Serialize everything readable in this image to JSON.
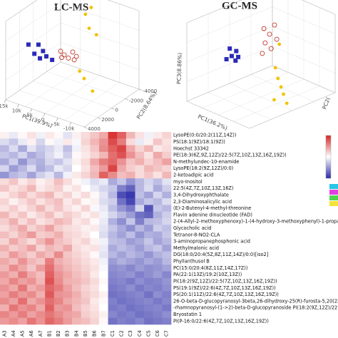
{
  "chart_data": [
    {
      "type": "scatter3d",
      "title": "LC-MS",
      "x_label": "PC1(39.9%)",
      "y_label": "PC2(8.64%)",
      "xlim": [
        15000,
        -15000
      ],
      "ylim": [
        4000,
        -4000
      ],
      "zlim": [
        -4000,
        4000
      ],
      "xticks": [
        {
          "value": 15000,
          "label": "15k"
        },
        {
          "value": 10000,
          "label": "10k"
        },
        {
          "value": 5000,
          "label": "5k"
        },
        0,
        {
          "value": -5000,
          "label": "-5k"
        },
        {
          "value": -10000,
          "label": "-10k"
        }
      ],
      "yticks": [
        4000,
        2000,
        0,
        -2000,
        -4000
      ],
      "series": [
        {
          "color": "#2b2bb8",
          "marker": "square",
          "x": [
            12600,
            9300,
            6500,
            10600,
            5500,
            8200,
            3800
          ],
          "y": [
            1600,
            1400,
            1800,
            1500,
            1700,
            1600,
            1500
          ],
          "z": [
            700,
            900,
            700,
            -100,
            200,
            -300,
            -100
          ]
        },
        {
          "color": "#c0392b",
          "marker": "open-circle",
          "x": [
            4500,
            2600,
            400,
            -1800,
            1800,
            -700,
            3700
          ],
          "y": [
            0,
            200,
            -200,
            100,
            -100,
            0,
            150
          ],
          "z": [
            0,
            -100,
            200,
            100,
            -500,
            -400,
            -500
          ]
        },
        {
          "color": "#f2c200",
          "marker": "circle",
          "x": [
            1300,
            -900,
            -100,
            -2900,
            3500,
            1800,
            -4500
          ],
          "y": [
            -2400,
            -2400,
            -2400,
            -2400,
            -2400,
            -2400,
            -1230
          ],
          "z": [
            2900,
            3800,
            1600,
            1200,
            -3100,
            -3700,
            -3840
          ]
        }
      ]
    },
    {
      "type": "scatter3d",
      "title": "GC-MS",
      "x_label": "PC1(36.2%)",
      "y_label": "PC2(",
      "z_label": "PC3(8.86%)",
      "xlim": [
        -1,
        1
      ],
      "ylim": [
        -1,
        1
      ],
      "zlim": [
        -1,
        1
      ],
      "series": [
        {
          "color": "#2b2bb8",
          "marker": "square",
          "x": [
            -0.45,
            -0.27,
            -0.36,
            -0.18,
            -0.5,
            -0.32
          ],
          "y": [
            -0.4,
            -0.38,
            -0.42,
            -0.4,
            -0.44,
            -0.36
          ],
          "z": [
            0.26,
            0.25,
            0.11,
            0.14,
            -0.01,
            -0.02
          ]
        },
        {
          "color": "#c0392b",
          "marker": "open-circle",
          "x": [
            -0.18,
            0,
            0.16,
            -0.14,
            0.05,
            -0.23,
            0.23
          ],
          "y": [
            0.2,
            0.2,
            0.2,
            0.2,
            0.2,
            0.2,
            0.2
          ],
          "z": [
            0.59,
            0.51,
            0.8,
            0.24,
            0.16,
            -0.06,
            0.46
          ]
        },
        {
          "color": "#f2c200",
          "marker": "circle",
          "x": [
            -0.22,
            0.01,
            0.16,
            0.38,
            0.54,
            0.7,
            0.46
          ],
          "y": [
            0.59,
            0.33,
            0.28,
            0.19,
            0.13,
            0.09,
            -0.03
          ],
          "z": [
            0,
            -0.4,
            -0.6,
            -0.7,
            -0.8,
            -0.96,
            -0.9
          ]
        }
      ]
    },
    {
      "type": "heatmap",
      "zlim": [
        -3,
        3
      ],
      "low_color": "#2b2ba8",
      "mid_color": "#ffffff",
      "high_color": "#d62728",
      "columns": [
        "A3",
        "A4",
        "A5",
        "A6",
        "A7",
        "B1",
        "B2",
        "B3",
        "B4",
        "B5",
        "B6",
        "B7",
        "C1",
        "C2",
        "C3",
        "C4",
        "C5",
        "C6",
        "C7"
      ],
      "rows": [
        "LysoPE(0:0/20:2(11Z,14Z))",
        "PS(18:1(9Z)/18:1(9Z))",
        "Hoechst 33342",
        "PE(18:3(6Z,9Z,12Z)/22:5(7Z,10Z,13Z,16Z,19Z))",
        "N-methylundec-10-enamide",
        "LysoPE(18:2(9Z,12Z)/0:0)",
        "2-ketoadipic acid",
        "myo-Inositol",
        "22:5(4Z,7Z,10Z,13Z,16Z)",
        "3,4-Dihydroxyphthalate",
        "2,3-Diaminosalicylic acid",
        "(E)-2-Butenyl-4-methyl-threonine",
        "Flavin adenine dinucleotide (FAD)",
        "2-(4-Allyl-2-methoxyphenoxy)-1-(4-hydroxy-3-methoxyphenyl)-1-propanol",
        "Glycocholic acid",
        "Tetranor-8-NO2-CLA",
        "3-aminopropanephosphonic acid",
        "Methylmalonic acid",
        "DG(18:0/20:4(5Z,8Z,11Z,14Z)/0:0)[iso2]",
        "Phyllanthusol B",
        "PC(15:0/20:4(8Z,11Z,14Z,17Z))",
        "PA(22:1(13Z)/19:2(10Z,13Z))",
        "PI(18:2(9Z,12Z)/22:5(7Z,10Z,13Z,16Z,19Z))",
        "PS(19:1(9Z)/22:6(4Z,7Z,10Z,13Z,16Z,19Z))",
        "PS(20:1(11Z)/22:6(4Z,7Z,10Z,13Z,16Z,19Z))",
        "26-O-beta-D-glucopyranosyl-3beta,26-dihydroxy-25(R)-furosta-5,20(22)-dien",
        "-rhamnopyranosyl-(1->2)-beta-D-glucopyranoside PI(18:2(9Z,12Z)/22:2(13Z,16Z))",
        "Bryostatin 1",
        "PI(P-16:0/22:6(4Z,7Z,10Z,13Z,16Z,19Z))"
      ],
      "values": [
        [
          0.2,
          -0.3,
          0.1,
          0.4,
          -0.2,
          0.3,
          0.1,
          -0.4,
          0.2,
          0.5,
          0.8,
          1.2,
          2.8,
          2.2,
          1.0,
          0.4,
          -0.2,
          0.3,
          0.6
        ],
        [
          -0.5,
          -0.8,
          -0.3,
          0.2,
          -0.6,
          0.1,
          -0.2,
          0.3,
          -0.1,
          0.6,
          1.0,
          1.5,
          2.5,
          1.8,
          0.5,
          -0.3,
          0.2,
          0.8,
          0.4
        ],
        [
          -1.0,
          -0.5,
          -1.2,
          -0.4,
          -0.8,
          -0.6,
          -0.3,
          -0.9,
          -0.2,
          0.4,
          0.8,
          1.6,
          2.2,
          2.6,
          1.2,
          0.6,
          1.0,
          0.3,
          0.5
        ],
        [
          -0.8,
          -1.0,
          -0.6,
          -1.2,
          -0.9,
          -0.5,
          -0.2,
          -0.7,
          0.1,
          0.3,
          0.6,
          1.0,
          2.0,
          2.4,
          1.5,
          0.9,
          0.4,
          1.2,
          0.7
        ],
        [
          -1.2,
          -0.7,
          -1.5,
          -0.9,
          -1.1,
          -0.6,
          -0.8,
          -0.4,
          0.2,
          0.5,
          1.2,
          1.8,
          2.1,
          1.5,
          0.8,
          1.1,
          0.6,
          0.9,
          1.3
        ],
        [
          -0.6,
          -1.4,
          -1.0,
          -0.5,
          -1.2,
          -0.9,
          -0.3,
          -0.6,
          0.0,
          0.4,
          0.9,
          1.4,
          2.6,
          1.2,
          0.7,
          0.5,
          1.0,
          0.8,
          0.6
        ],
        [
          -1.5,
          -1.0,
          -0.8,
          -1.3,
          -0.7,
          -0.4,
          -1.0,
          -0.2,
          0.3,
          0.6,
          1.0,
          2.2,
          1.6,
          0.9,
          1.1,
          0.5,
          0.8,
          0.4,
          1.0
        ],
        [
          0.5,
          0.8,
          0.3,
          0.6,
          0.2,
          0.4,
          0.9,
          0.5,
          0.1,
          -0.2,
          -0.5,
          -0.3,
          -1.2,
          -0.8,
          -1.5,
          -1.0,
          -0.6,
          -0.9,
          -0.4
        ],
        [
          0.8,
          0.4,
          0.6,
          1.0,
          0.3,
          0.5,
          0.7,
          0.2,
          0.4,
          0.0,
          -0.3,
          -0.6,
          -0.8,
          -1.8,
          -2.2,
          -1.0,
          -0.5,
          -1.2,
          -0.7
        ],
        [
          0.3,
          0.6,
          0.9,
          0.5,
          0.8,
          1.0,
          0.4,
          0.6,
          0.2,
          0.5,
          0.1,
          -0.4,
          -1.0,
          -2.5,
          -2.8,
          -0.9,
          -1.3,
          -0.6,
          -1.1
        ],
        [
          0.6,
          0.2,
          0.5,
          0.8,
          0.4,
          0.7,
          0.9,
          0.3,
          0.6,
          0.1,
          0.2,
          -0.5,
          -0.7,
          -2.0,
          -2.6,
          -1.2,
          -0.8,
          -1.0,
          -0.5
        ],
        [
          0.4,
          0.7,
          0.3,
          0.6,
          1.0,
          0.5,
          0.8,
          0.4,
          0.2,
          0.6,
          -0.1,
          -0.3,
          -0.9,
          -1.5,
          -1.9,
          -0.6,
          -2.4,
          -0.8,
          -1.0
        ],
        [
          1.0,
          0.5,
          0.8,
          0.3,
          0.6,
          0.9,
          0.4,
          0.7,
          0.5,
          0.2,
          0.4,
          -0.2,
          -0.6,
          -1.0,
          -1.4,
          -2.0,
          -2.2,
          -1.1,
          -0.7
        ],
        [
          0.7,
          1.1,
          0.5,
          0.9,
          0.4,
          0.6,
          1.0,
          0.8,
          0.3,
          0.5,
          0.1,
          -0.3,
          -1.1,
          -1.6,
          -0.8,
          -1.8,
          -1.0,
          -0.9,
          -0.6
        ],
        [
          0.5,
          0.8,
          1.2,
          0.6,
          0.9,
          1.3,
          0.7,
          0.5,
          0.4,
          0.2,
          0.3,
          -0.4,
          -0.8,
          -1.2,
          -1.6,
          -1.0,
          -1.4,
          -0.7,
          -0.9
        ],
        [
          0.9,
          0.6,
          1.0,
          1.4,
          0.7,
          0.8,
          1.1,
          0.6,
          0.5,
          0.3,
          0.0,
          -0.5,
          -1.0,
          -1.3,
          -0.9,
          -1.5,
          -1.1,
          -1.2,
          -0.8
        ],
        [
          0.6,
          1.2,
          0.8,
          0.5,
          1.0,
          1.5,
          0.9,
          0.7,
          0.4,
          0.6,
          0.2,
          -0.2,
          -0.9,
          -1.0,
          -1.4,
          -1.2,
          -0.8,
          -1.3,
          -1.0
        ],
        [
          1.1,
          0.7,
          0.9,
          1.3,
          0.6,
          1.0,
          0.8,
          1.2,
          0.5,
          0.3,
          0.4,
          -0.3,
          -1.2,
          -0.9,
          -1.1,
          -1.4,
          -1.0,
          -0.8,
          -1.3
        ],
        [
          0.8,
          1.4,
          1.0,
          0.7,
          1.2,
          0.9,
          1.6,
          0.8,
          0.6,
          0.4,
          0.1,
          -0.4,
          -1.0,
          -1.3,
          -1.0,
          -1.2,
          -1.5,
          -1.1,
          -0.9
        ],
        [
          1.2,
          0.9,
          1.5,
          1.0,
          0.8,
          1.8,
          1.1,
          0.9,
          0.7,
          0.5,
          0.3,
          -0.2,
          -1.4,
          -1.1,
          -1.3,
          -1.5,
          -1.2,
          -1.4,
          -1.0
        ],
        [
          1.0,
          1.6,
          1.2,
          0.8,
          1.4,
          2.0,
          1.3,
          1.0,
          0.8,
          0.6,
          0.4,
          -0.1,
          -1.6,
          -1.5,
          -1.7,
          -1.4,
          -1.6,
          -1.5,
          -1.3
        ],
        [
          1.4,
          1.1,
          1.8,
          1.2,
          0.9,
          2.2,
          1.5,
          1.2,
          0.9,
          0.7,
          0.3,
          0.0,
          -1.7,
          -1.6,
          -1.5,
          -1.8,
          -1.6,
          -1.4,
          -1.7
        ],
        [
          1.2,
          1.7,
          1.3,
          1.5,
          1.0,
          2.4,
          1.6,
          1.1,
          1.0,
          0.8,
          0.5,
          0.1,
          -1.8,
          -1.7,
          -1.9,
          -1.6,
          -1.8,
          -1.7,
          -1.5
        ],
        [
          1.5,
          1.2,
          1.9,
          1.1,
          1.4,
          2.1,
          1.8,
          1.3,
          0.9,
          0.6,
          0.4,
          0.0,
          -1.9,
          -1.8,
          -1.6,
          -1.9,
          -1.7,
          -1.8,
          -1.6
        ],
        [
          1.3,
          1.8,
          1.4,
          1.6,
          1.1,
          2.3,
          1.5,
          1.4,
          1.1,
          0.7,
          0.5,
          0.2,
          -2.0,
          -1.9,
          -1.8,
          -1.7,
          -2.0,
          -1.6,
          -1.8
        ],
        [
          1.6,
          1.3,
          2.0,
          1.2,
          1.5,
          2.0,
          1.7,
          1.2,
          1.0,
          0.8,
          0.3,
          0.1,
          -1.8,
          -2.0,
          -1.9,
          -1.8,
          -1.7,
          -1.9,
          -1.7
        ],
        [
          1.1,
          1.9,
          1.5,
          1.7,
          1.2,
          2.2,
          1.4,
          1.5,
          0.9,
          0.6,
          0.4,
          0.0,
          -1.9,
          -1.8,
          -2.0,
          -1.9,
          -1.8,
          -1.7,
          -1.9
        ],
        [
          1.7,
          1.4,
          1.8,
          1.3,
          1.6,
          1.9,
          1.6,
          1.3,
          1.2,
          0.7,
          0.5,
          0.2,
          -1.7,
          -1.9,
          -1.8,
          -2.0,
          -1.9,
          -1.8,
          -1.6
        ],
        [
          1.4,
          1.6,
          1.3,
          1.9,
          1.5,
          2.1,
          1.8,
          1.4,
          1.0,
          0.9,
          0.6,
          0.1,
          -2.0,
          -1.8,
          -1.9,
          -1.7,
          -2.0,
          -1.9,
          -1.8
        ]
      ]
    }
  ]
}
